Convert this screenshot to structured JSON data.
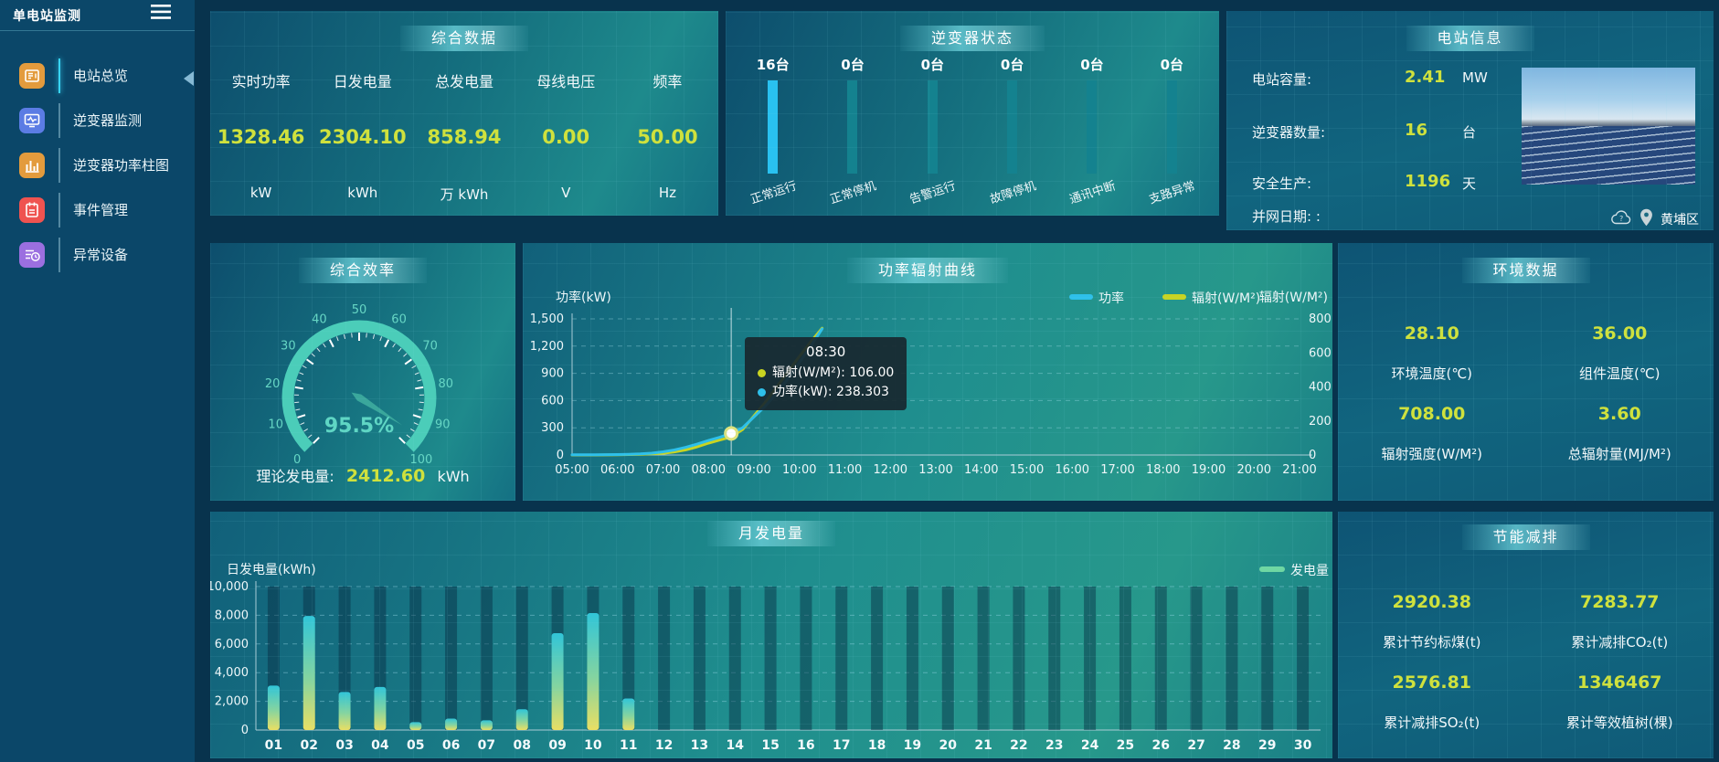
{
  "sidebar": {
    "title": "单电站监测",
    "items": [
      {
        "label": "电站总览",
        "icon": "overview-icon",
        "color": "#e39b3d",
        "active": true
      },
      {
        "label": "逆变器监测",
        "icon": "inverter-monitor-icon",
        "color": "#5b7ce4",
        "active": false
      },
      {
        "label": "逆变器功率柱图",
        "icon": "power-bars-icon",
        "color": "#e39b3d",
        "active": false
      },
      {
        "label": "事件管理",
        "icon": "events-icon",
        "color": "#ef5350",
        "active": false
      },
      {
        "label": "异常设备",
        "icon": "abnormal-devices-icon",
        "color": "#9b6fe0",
        "active": false
      }
    ]
  },
  "panels": {
    "summary": {
      "title": "综合数据",
      "metrics": [
        {
          "label": "实时功率",
          "value": "1328.46",
          "unit": "kW"
        },
        {
          "label": "日发电量",
          "value": "2304.10",
          "unit": "kWh"
        },
        {
          "label": "总发电量",
          "value": "858.94",
          "unit": "万 kWh"
        },
        {
          "label": "母线电压",
          "value": "0.00",
          "unit": "V"
        },
        {
          "label": "频率",
          "value": "50.00",
          "unit": "Hz"
        }
      ]
    },
    "inverter_status": {
      "title": "逆变器状态",
      "bars": [
        {
          "count": "16台",
          "label": "正常运行",
          "active": true
        },
        {
          "count": "0台",
          "label": "正常停机",
          "active": false
        },
        {
          "count": "0台",
          "label": "告警运行",
          "active": false
        },
        {
          "count": "0台",
          "label": "故障停机",
          "active": false
        },
        {
          "count": "0台",
          "label": "通讯中断",
          "active": false
        },
        {
          "count": "0台",
          "label": "支路异常",
          "active": false
        }
      ]
    },
    "station_info": {
      "title": "电站信息",
      "rows": [
        {
          "label": "电站容量:",
          "value": "2.41",
          "unit": "MW"
        },
        {
          "label": "逆变器数量:",
          "value": "16",
          "unit": "台"
        },
        {
          "label": "安全生产:",
          "value": "1196",
          "unit": "天"
        },
        {
          "label": "并网日期:  :",
          "value": "",
          "unit": ""
        }
      ],
      "location": "黄埔区"
    },
    "efficiency": {
      "title": "综合效率",
      "theory_label": "理论发电量:",
      "theory_value": "2412.60",
      "theory_unit": "kWh"
    },
    "power_radiation": {
      "title": "功率辐射曲线"
    },
    "environment": {
      "title": "环境数据",
      "metrics": [
        {
          "value": "28.10",
          "label": "环境温度(℃)"
        },
        {
          "value": "36.00",
          "label": "组件温度(℃)"
        },
        {
          "value": "708.00",
          "label": "辐射强度(W/M²)"
        },
        {
          "value": "3.60",
          "label": "总辐射量(MJ/M²)"
        }
      ]
    },
    "monthly": {
      "title": "月发电量"
    },
    "savings": {
      "title": "节能减排",
      "metrics": [
        {
          "value": "2920.38",
          "label": "累计节约标煤(t)"
        },
        {
          "value": "7283.77",
          "label": "累计减排CO₂(t)"
        },
        {
          "value": "2576.81",
          "label": "累计减排SO₂(t)"
        },
        {
          "value": "1346467",
          "label": "累计等效植树(棵)"
        }
      ]
    }
  },
  "colors": {
    "accent_yellow": "#cfe13d",
    "cyan": "#29c1f0",
    "teal": "#4bcdb9",
    "line_power": "#2ec0ea",
    "line_radiation": "#c9d421"
  },
  "chart_data": [
    {
      "id": "inverter_status",
      "type": "bar",
      "title": "逆变器状态",
      "categories": [
        "正常运行",
        "正常停机",
        "告警运行",
        "故障停机",
        "通讯中断",
        "支路异常"
      ],
      "values": [
        16,
        0,
        0,
        0,
        0,
        0
      ],
      "unit": "台",
      "total": 16
    },
    {
      "id": "efficiency_gauge",
      "type": "gauge",
      "title": "综合效率",
      "value": 95.5,
      "label": "95.5%",
      "min": 0,
      "max": 100,
      "ticks": [
        0,
        10,
        20,
        30,
        40,
        50,
        60,
        70,
        80,
        90,
        100
      ]
    },
    {
      "id": "power_radiation",
      "type": "line",
      "title": "功率辐射曲线",
      "xlabel_ticks": [
        "05:00",
        "06:00",
        "07:00",
        "08:00",
        "09:00",
        "10:00",
        "11:00",
        "12:00",
        "13:00",
        "14:00",
        "15:00",
        "16:00",
        "17:00",
        "18:00",
        "19:00",
        "20:00",
        "21:00"
      ],
      "xlim": [
        5,
        21
      ],
      "ylabel_left": "功率(kW)",
      "ylabel_right": "辐射(W/M²)",
      "yticks_left": [
        0,
        300,
        600,
        900,
        1200,
        1500
      ],
      "yticks_right": [
        0,
        200,
        400,
        600,
        800
      ],
      "ylim_left": [
        0,
        1500
      ],
      "ylim_right": [
        0,
        800
      ],
      "grid": "dashed",
      "legend_position": "top-right",
      "series": [
        {
          "name": "辐射(W/M²)",
          "axis": "right",
          "color": "#c9d421",
          "points": [
            [
              5,
              0
            ],
            [
              5.5,
              0
            ],
            [
              6,
              1
            ],
            [
              6.5,
              4
            ],
            [
              7,
              10
            ],
            [
              7.25,
              18
            ],
            [
              7.5,
              30
            ],
            [
              7.75,
              48
            ],
            [
              8,
              70
            ],
            [
              8.25,
              88
            ],
            [
              8.5,
              106
            ],
            [
              8.75,
              150
            ],
            [
              9,
              230
            ],
            [
              9.25,
              310
            ],
            [
              9.5,
              400
            ],
            [
              9.75,
              490
            ],
            [
              10,
              580
            ],
            [
              10.25,
              665
            ],
            [
              10.5,
              745
            ]
          ]
        },
        {
          "name": "功率",
          "axis": "left",
          "color": "#2ec0ea",
          "points": [
            [
              5,
              3
            ],
            [
              5.5,
              3
            ],
            [
              6,
              5
            ],
            [
              6.25,
              8
            ],
            [
              6.5,
              12
            ],
            [
              6.75,
              20
            ],
            [
              7,
              35
            ],
            [
              7.25,
              55
            ],
            [
              7.5,
              85
            ],
            [
              7.75,
              120
            ],
            [
              8,
              160
            ],
            [
              8.25,
              195
            ],
            [
              8.5,
              238.303
            ],
            [
              8.75,
              300
            ],
            [
              9,
              420
            ],
            [
              9.25,
              540
            ],
            [
              9.5,
              680
            ],
            [
              9.75,
              840
            ],
            [
              10,
              1020
            ],
            [
              10.25,
              1200
            ],
            [
              10.5,
              1390
            ]
          ]
        }
      ],
      "tooltip": {
        "title": "08:30",
        "x": 8.5,
        "marker_value": 238.303,
        "rows": [
          {
            "color": "#c9d421",
            "text": "辐射(W/M²): 106.00"
          },
          {
            "color": "#2ec0ea",
            "text": "功率(kW): 238.303"
          }
        ]
      }
    },
    {
      "id": "monthly_generation",
      "type": "bar",
      "title": "月发电量",
      "ylabel": "日发电量(kWh)",
      "legend": "发电量",
      "categories": [
        "01",
        "02",
        "03",
        "04",
        "05",
        "06",
        "07",
        "08",
        "09",
        "10",
        "11",
        "12",
        "13",
        "14",
        "15",
        "16",
        "17",
        "18",
        "19",
        "20",
        "21",
        "22",
        "23",
        "24",
        "25",
        "26",
        "27",
        "28",
        "29",
        "30"
      ],
      "values": [
        3100,
        7950,
        2650,
        3000,
        550,
        800,
        680,
        1450,
        6750,
        8150,
        2200,
        0,
        0,
        0,
        0,
        0,
        0,
        0,
        0,
        0,
        0,
        0,
        0,
        0,
        0,
        0,
        0,
        0,
        0,
        0
      ],
      "yticks": [
        0,
        2000,
        4000,
        6000,
        8000,
        10000
      ],
      "ylim": [
        0,
        10000
      ],
      "grid": "dashed"
    }
  ]
}
